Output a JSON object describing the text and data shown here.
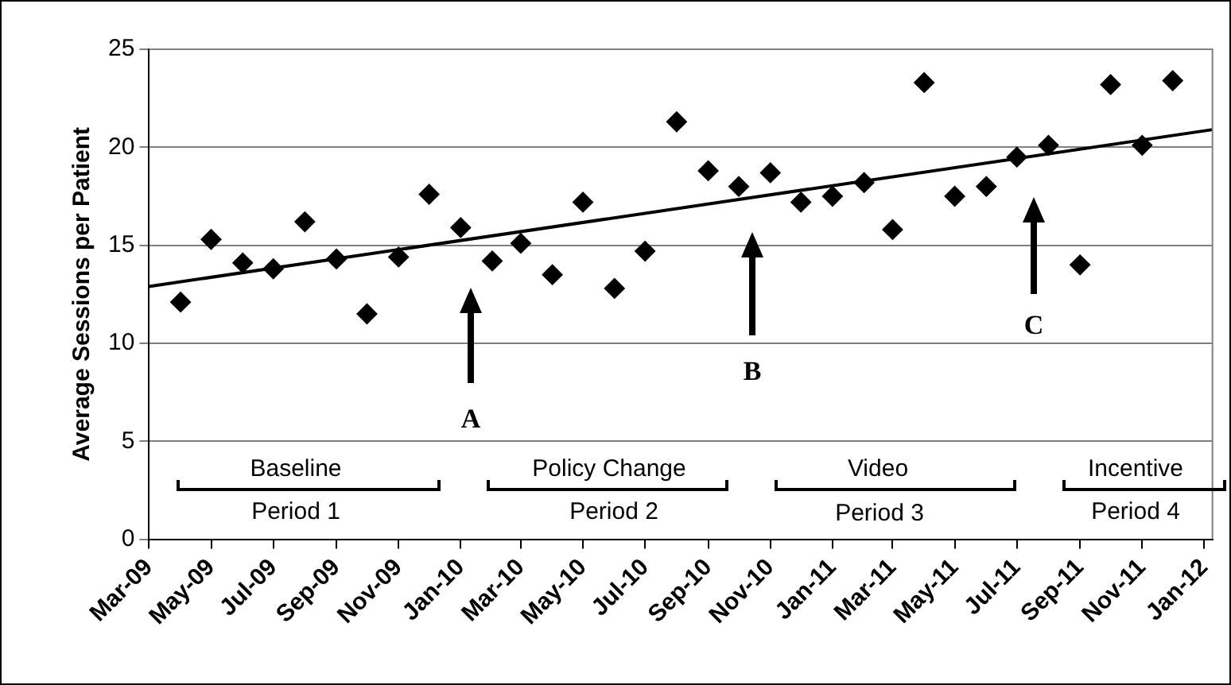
{
  "chart_data": {
    "type": "scatter",
    "ylabel": "Average Sessions per Patient",
    "marker": "diamond",
    "grid": "y",
    "legend": false,
    "x": [
      "2009-04",
      "2009-05",
      "2009-06",
      "2009-07",
      "2009-08",
      "2009-09",
      "2009-10",
      "2009-11",
      "2009-12",
      "2010-01",
      "2010-02",
      "2010-03",
      "2010-04",
      "2010-05",
      "2010-06",
      "2010-07",
      "2010-08",
      "2010-09",
      "2010-10",
      "2010-11",
      "2010-12",
      "2011-01",
      "2011-02",
      "2011-03",
      "2011-04",
      "2011-05",
      "2011-06",
      "2011-07",
      "2011-08",
      "2011-09",
      "2011-10",
      "2011-11",
      "2011-12"
    ],
    "series": [
      {
        "color": "#000000",
        "values": [
          12.1,
          15.3,
          14.1,
          13.8,
          16.2,
          14.3,
          11.5,
          14.4,
          17.6,
          15.9,
          14.2,
          15.1,
          13.5,
          17.2,
          12.8,
          14.7,
          21.3,
          18.8,
          18.0,
          18.7,
          17.2,
          17.5,
          18.2,
          15.8,
          23.3,
          17.5,
          18.0,
          19.5,
          20.1,
          14.0,
          23.2,
          20.1,
          23.4
        ]
      },
      {
        "type": "line",
        "color": "#000000",
        "x": [
          "2009-03",
          "2012-01-09"
        ],
        "values": [
          12.9,
          20.9
        ],
        "marker": "none"
      }
    ],
    "xlim": [
      "2009-03",
      "2012-01-09"
    ],
    "xticks": [
      {
        "value": "2009-03",
        "label": "Mar-09"
      },
      {
        "value": "2009-05",
        "label": "May-09"
      },
      {
        "value": "2009-07",
        "label": "Jul-09"
      },
      {
        "value": "2009-09",
        "label": "Sep-09"
      },
      {
        "value": "2009-11",
        "label": "Nov-09"
      },
      {
        "value": "2010-01",
        "label": "Jan-10"
      },
      {
        "value": "2010-03",
        "label": "Mar-10"
      },
      {
        "value": "2010-05",
        "label": "May-10"
      },
      {
        "value": "2010-07",
        "label": "Jul-10"
      },
      {
        "value": "2010-09",
        "label": "Sep-10"
      },
      {
        "value": "2010-11",
        "label": "Nov-10"
      },
      {
        "value": "2011-01",
        "label": "Jan-11"
      },
      {
        "value": "2011-03",
        "label": "Mar-11"
      },
      {
        "value": "2011-05",
        "label": "May-11"
      },
      {
        "value": "2011-07",
        "label": "Jul-11"
      },
      {
        "value": "2011-09",
        "label": "Sep-11"
      },
      {
        "value": "2011-11",
        "label": "Nov-11"
      },
      {
        "value": "2012-01",
        "label": "Jan-12"
      }
    ],
    "ylim": [
      0,
      25
    ],
    "yticks": [
      0,
      5,
      10,
      15,
      20,
      25
    ],
    "annotations": [
      "A",
      "B",
      "C",
      "Baseline",
      "Period 1",
      "Policy Change",
      "Period 2",
      "Video",
      "Period 3",
      "Incentive",
      "Period 4"
    ]
  }
}
